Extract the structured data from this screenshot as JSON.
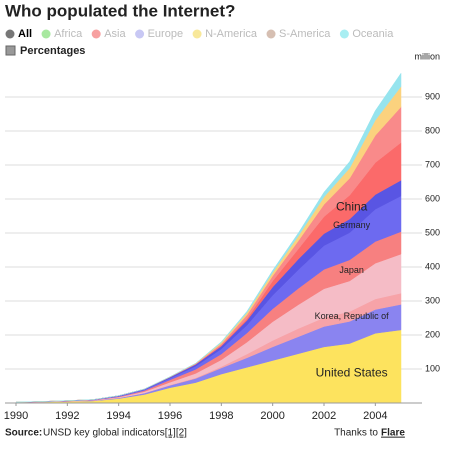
{
  "chart_data": {
    "type": "stacked-area",
    "title": "Who populated the Internet?",
    "y_unit": "million",
    "x": [
      1990,
      1991,
      1992,
      1993,
      1994,
      1995,
      1996,
      1997,
      1998,
      1999,
      2000,
      2001,
      2002,
      2003,
      2004,
      2005
    ],
    "xlim": [
      1990,
      2005
    ],
    "xticks": [
      1990,
      1992,
      1994,
      1996,
      1998,
      2000,
      2002,
      2004
    ],
    "ylim": [
      0,
      1000
    ],
    "yticks": [
      100,
      200,
      300,
      400,
      500,
      600,
      700,
      800,
      900
    ],
    "grid": true,
    "series": [
      {
        "name": "United States",
        "color": "#fde35e",
        "values": [
          2,
          3,
          4.5,
          6,
          13,
          25,
          45,
          60,
          85,
          105,
          125,
          145,
          165,
          175,
          205,
          215
        ]
      },
      {
        "color": "#8a84f0",
        "values": [
          0,
          0.3,
          0.5,
          1,
          2,
          4,
          7,
          12,
          18,
          28,
          40,
          50,
          60,
          65,
          70,
          75
        ]
      },
      {
        "name": "Korea, Republic of",
        "color": "#f7a3a8",
        "values": [
          0,
          0,
          0,
          0,
          0.1,
          0.4,
          1,
          2,
          4,
          11,
          19,
          24,
          26,
          29,
          31,
          33
        ]
      },
      {
        "color": "#f5bcc6",
        "values": [
          0.2,
          0.4,
          0.7,
          1,
          2,
          4,
          8,
          13,
          20,
          35,
          55,
          70,
          85,
          90,
          105,
          115
        ]
      },
      {
        "name": "Japan",
        "color": "#f78080",
        "values": [
          0.1,
          0.2,
          0.4,
          0.6,
          1.5,
          3,
          7,
          12,
          17,
          27,
          38,
          48,
          57,
          62,
          64,
          66
        ]
      },
      {
        "color": "#6d6af0",
        "values": [
          0.2,
          0.3,
          0.6,
          0.9,
          2,
          3,
          5,
          9,
          15,
          23,
          40,
          55,
          70,
          80,
          95,
          105
        ]
      },
      {
        "name": "Germany",
        "color": "#5955e3",
        "values": [
          0.1,
          0.2,
          0.3,
          0.5,
          1,
          1.5,
          3,
          5.5,
          8,
          14,
          24,
          31,
          35,
          40,
          43,
          46
        ]
      },
      {
        "name": "China",
        "color": "#fb6a6a",
        "values": [
          0,
          0,
          0,
          0,
          0,
          0.1,
          0.2,
          0.5,
          2,
          5,
          18,
          30,
          50,
          70,
          94,
          111
        ]
      },
      {
        "color": "#f98a8a",
        "values": [
          0,
          0,
          0,
          0,
          0,
          0,
          0.5,
          1.5,
          5,
          11,
          15,
          24,
          36,
          50,
          80,
          105
        ]
      },
      {
        "color": "#fbd27e",
        "values": [
          0,
          0,
          0,
          0,
          0,
          0,
          0.5,
          1,
          4,
          7,
          10,
          14,
          22,
          30,
          45,
          60
        ]
      },
      {
        "color": "#96e4ee",
        "values": [
          0,
          0,
          0,
          0,
          0,
          0,
          0.2,
          0.5,
          2,
          4,
          6,
          9,
          14,
          19,
          28,
          39
        ]
      }
    ]
  },
  "filters": [
    {
      "label": "All",
      "color": "#777777",
      "active": true
    },
    {
      "label": "Africa",
      "color": "#a8e8a0",
      "active": false
    },
    {
      "label": "Asia",
      "color": "#f7a0a0",
      "active": false
    },
    {
      "label": "Europe",
      "color": "#c8c8f4",
      "active": false
    },
    {
      "label": "N-America",
      "color": "#f8e89a",
      "active": false
    },
    {
      "label": "S-America",
      "color": "#d6bfb2",
      "active": false
    },
    {
      "label": "Oceania",
      "color": "#a8eef2",
      "active": false
    }
  ],
  "percentages": "Percentages",
  "footer": {
    "source_label": "Source:",
    "source_text": "UNSD key global indicators",
    "links": [
      "[1]",
      "[2]"
    ],
    "thanks": "Thanks to",
    "thanks_link": "Flare"
  }
}
